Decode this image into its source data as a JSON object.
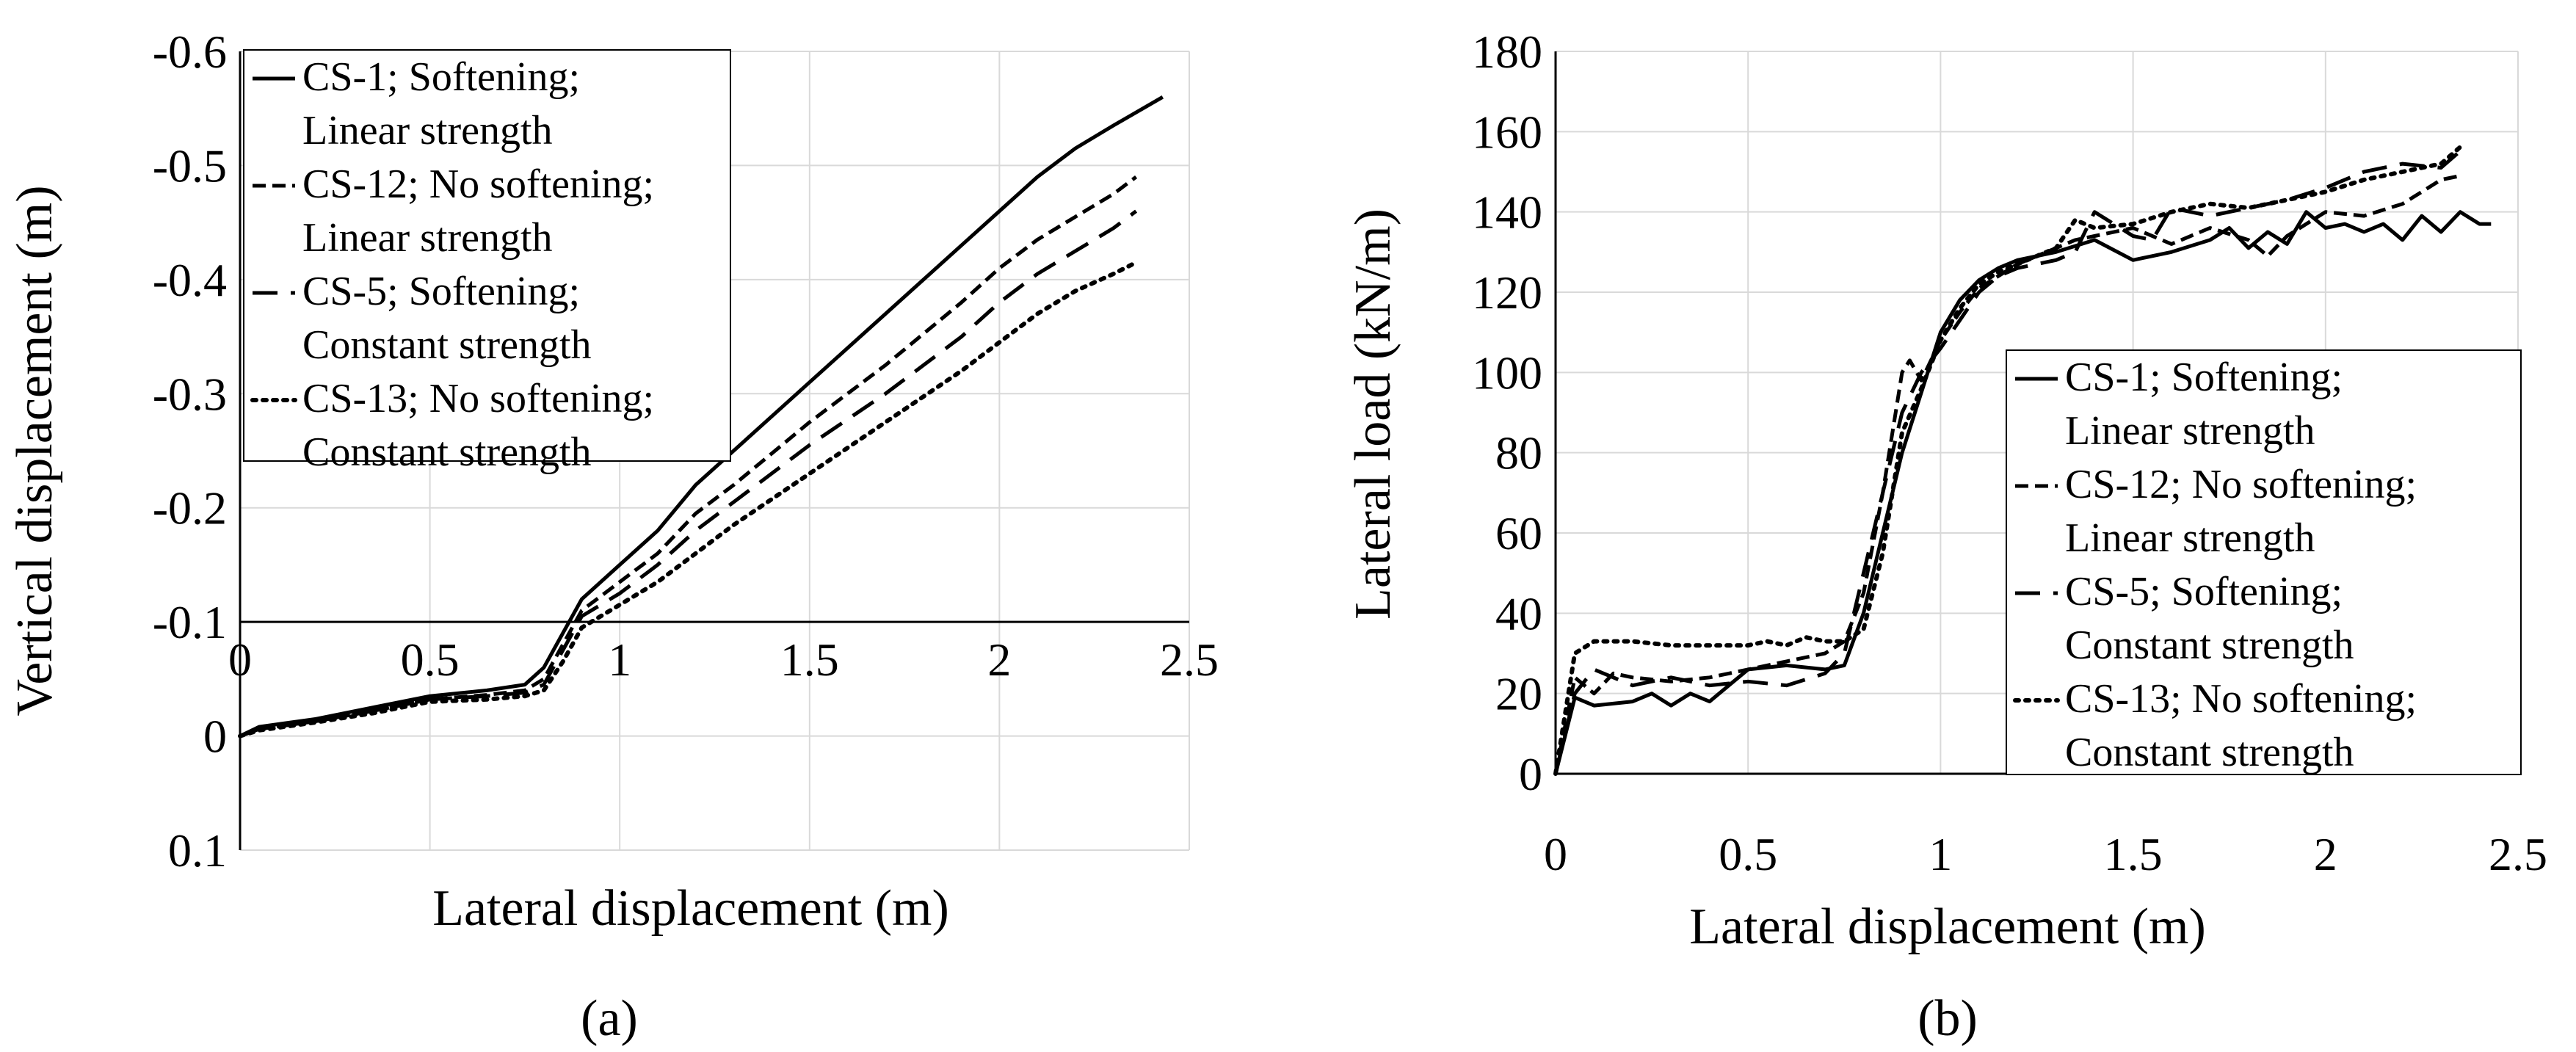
{
  "chart_data": [
    {
      "panel": "(a)",
      "type": "line",
      "xlabel": "Lateral displacement (m)",
      "ylabel": "Vertical displacement (m)",
      "xlim": [
        0,
        2.5
      ],
      "ylim": [
        0.1,
        -0.6
      ],
      "y_axis_inverted": true,
      "x_ticks": [
        "0",
        "0.5",
        "1",
        "1.5",
        "2",
        "2.5"
      ],
      "y_ticks": [
        "-0.6",
        "-0.5",
        "-0.4",
        "-0.3",
        "-0.2",
        "-0.1",
        "0",
        "0.1"
      ],
      "grid": true,
      "legend_position": "top-left",
      "series": [
        {
          "name": "CS-1;  Softening;",
          "name2": "Linear strength",
          "style": "solid",
          "x": [
            0,
            0.05,
            0.2,
            0.35,
            0.5,
            0.65,
            0.75,
            0.8,
            0.85,
            0.9,
            1.0,
            1.1,
            1.2,
            1.3,
            1.5,
            1.7,
            1.9,
            2.0,
            2.1,
            2.2,
            2.3,
            2.43
          ],
          "y": [
            0.0,
            -0.008,
            -0.015,
            -0.025,
            -0.035,
            -0.04,
            -0.045,
            -0.06,
            -0.09,
            -0.12,
            -0.15,
            -0.18,
            -0.22,
            -0.25,
            -0.31,
            -0.37,
            -0.43,
            -0.46,
            -0.49,
            -0.515,
            -0.535,
            -0.56
          ]
        },
        {
          "name": "CS-12; No softening;",
          "name2": "Linear strength",
          "style": "dashed",
          "x": [
            0,
            0.05,
            0.2,
            0.35,
            0.5,
            0.65,
            0.75,
            0.8,
            0.85,
            0.9,
            1.0,
            1.1,
            1.2,
            1.3,
            1.5,
            1.7,
            1.9,
            2.0,
            2.1,
            2.2,
            2.3,
            2.36
          ],
          "y": [
            0.0,
            -0.006,
            -0.013,
            -0.022,
            -0.032,
            -0.036,
            -0.04,
            -0.05,
            -0.08,
            -0.11,
            -0.135,
            -0.16,
            -0.195,
            -0.22,
            -0.275,
            -0.325,
            -0.38,
            -0.41,
            -0.435,
            -0.455,
            -0.475,
            -0.49
          ]
        },
        {
          "name": "CS-5; Softening;",
          "name2": "Constant strength",
          "style": "long-dashed",
          "x": [
            0,
            0.05,
            0.2,
            0.35,
            0.5,
            0.65,
            0.75,
            0.8,
            0.85,
            0.9,
            1.0,
            1.1,
            1.2,
            1.3,
            1.5,
            1.7,
            1.9,
            2.0,
            2.1,
            2.2,
            2.3,
            2.36
          ],
          "y": [
            0.0,
            -0.006,
            -0.013,
            -0.022,
            -0.032,
            -0.035,
            -0.038,
            -0.045,
            -0.075,
            -0.105,
            -0.125,
            -0.15,
            -0.18,
            -0.205,
            -0.255,
            -0.3,
            -0.35,
            -0.38,
            -0.405,
            -0.425,
            -0.445,
            -0.46
          ]
        },
        {
          "name": "CS-13; No softening;",
          "name2": "Constant strength",
          "style": "dotted",
          "x": [
            0,
            0.05,
            0.2,
            0.35,
            0.5,
            0.65,
            0.75,
            0.8,
            0.85,
            0.9,
            1.0,
            1.1,
            1.2,
            1.3,
            1.5,
            1.7,
            1.9,
            2.0,
            2.1,
            2.2,
            2.3,
            2.36
          ],
          "y": [
            0.0,
            -0.005,
            -0.012,
            -0.02,
            -0.03,
            -0.032,
            -0.035,
            -0.04,
            -0.065,
            -0.095,
            -0.115,
            -0.135,
            -0.16,
            -0.185,
            -0.23,
            -0.275,
            -0.32,
            -0.345,
            -0.37,
            -0.39,
            -0.405,
            -0.415
          ]
        }
      ]
    },
    {
      "panel": "(b)",
      "type": "line",
      "xlabel": "Lateral displacement (m)",
      "ylabel": "Lateral load (kN/m)",
      "xlim": [
        0,
        2.5
      ],
      "ylim": [
        0,
        180
      ],
      "x_ticks": [
        "0",
        "0.5",
        "1",
        "1.5",
        "2",
        "2.5"
      ],
      "y_ticks": [
        "0",
        "20",
        "40",
        "60",
        "80",
        "100",
        "120",
        "140",
        "160",
        "180"
      ],
      "grid": true,
      "legend_position": "right",
      "series": [
        {
          "name": "CS-1;  Softening;",
          "name2": "Linear strength",
          "style": "solid",
          "x": [
            0,
            0.05,
            0.1,
            0.2,
            0.25,
            0.3,
            0.35,
            0.4,
            0.45,
            0.5,
            0.6,
            0.7,
            0.75,
            0.8,
            0.85,
            0.9,
            0.95,
            1.0,
            1.05,
            1.1,
            1.15,
            1.2,
            1.3,
            1.4,
            1.5,
            1.6,
            1.7,
            1.75,
            1.8,
            1.85,
            1.9,
            1.95,
            2.0,
            2.05,
            2.1,
            2.15,
            2.2,
            2.25,
            2.3,
            2.35,
            2.4,
            2.43
          ],
          "y": [
            0,
            19,
            17,
            18,
            20,
            17,
            20,
            18,
            22,
            26,
            27,
            26,
            27,
            40,
            60,
            80,
            95,
            110,
            118,
            123,
            126,
            128,
            130,
            133,
            128,
            130,
            133,
            136,
            131,
            135,
            132,
            140,
            136,
            137,
            135,
            137,
            133,
            139,
            135,
            140,
            137,
            137
          ]
        },
        {
          "name": "CS-12; No softening;",
          "name2": "Linear strength",
          "style": "dashed",
          "x": [
            0,
            0.05,
            0.1,
            0.15,
            0.2,
            0.3,
            0.4,
            0.5,
            0.6,
            0.7,
            0.75,
            0.8,
            0.85,
            0.9,
            0.92,
            0.95,
            1.0,
            1.05,
            1.1,
            1.15,
            1.2,
            1.3,
            1.35,
            1.4,
            1.5,
            1.6,
            1.7,
            1.8,
            1.85,
            1.9,
            2.0,
            2.1,
            2.2,
            2.3,
            2.35
          ],
          "y": [
            0,
            24,
            20,
            25,
            24,
            23,
            24,
            26,
            28,
            30,
            33,
            45,
            70,
            100,
            103,
            98,
            108,
            115,
            121,
            124,
            127,
            131,
            133,
            134,
            136,
            132,
            136,
            133,
            129,
            134,
            140,
            139,
            142,
            148,
            149
          ]
        },
        {
          "name": "CS-5; Softening;",
          "name2": "Constant strength",
          "style": "long-dashed",
          "x": [
            0,
            0.05,
            0.1,
            0.2,
            0.3,
            0.4,
            0.5,
            0.6,
            0.7,
            0.75,
            0.8,
            0.85,
            0.9,
            0.95,
            1.0,
            1.05,
            1.1,
            1.15,
            1.2,
            1.3,
            1.35,
            1.4,
            1.5,
            1.55,
            1.6,
            1.7,
            1.8,
            1.9,
            2.0,
            2.1,
            2.2,
            2.3,
            2.36
          ],
          "y": [
            0,
            20,
            26,
            22,
            24,
            22,
            23,
            22,
            25,
            30,
            50,
            70,
            90,
            100,
            106,
            113,
            120,
            124,
            126,
            128,
            130,
            140,
            134,
            133,
            141,
            139,
            141,
            143,
            146,
            150,
            152,
            151,
            156
          ]
        },
        {
          "name": "CS-13; No softening;",
          "name2": "Constant strength",
          "style": "dotted",
          "x": [
            0,
            0.05,
            0.1,
            0.2,
            0.3,
            0.4,
            0.5,
            0.55,
            0.6,
            0.65,
            0.7,
            0.75,
            0.8,
            0.85,
            0.9,
            0.95,
            1.0,
            1.05,
            1.1,
            1.15,
            1.2,
            1.3,
            1.35,
            1.4,
            1.5,
            1.6,
            1.7,
            1.8,
            1.9,
            2.0,
            2.1,
            2.2,
            2.3,
            2.36
          ],
          "y": [
            0,
            30,
            33,
            33,
            32,
            32,
            32,
            33,
            32,
            34,
            33,
            33,
            36,
            55,
            85,
            96,
            108,
            116,
            122,
            125,
            127,
            131,
            138,
            136,
            137,
            140,
            142,
            141,
            143,
            145,
            148,
            150,
            152,
            157
          ]
        }
      ]
    }
  ],
  "captions": {
    "a": "(a)",
    "b": "(b)"
  }
}
